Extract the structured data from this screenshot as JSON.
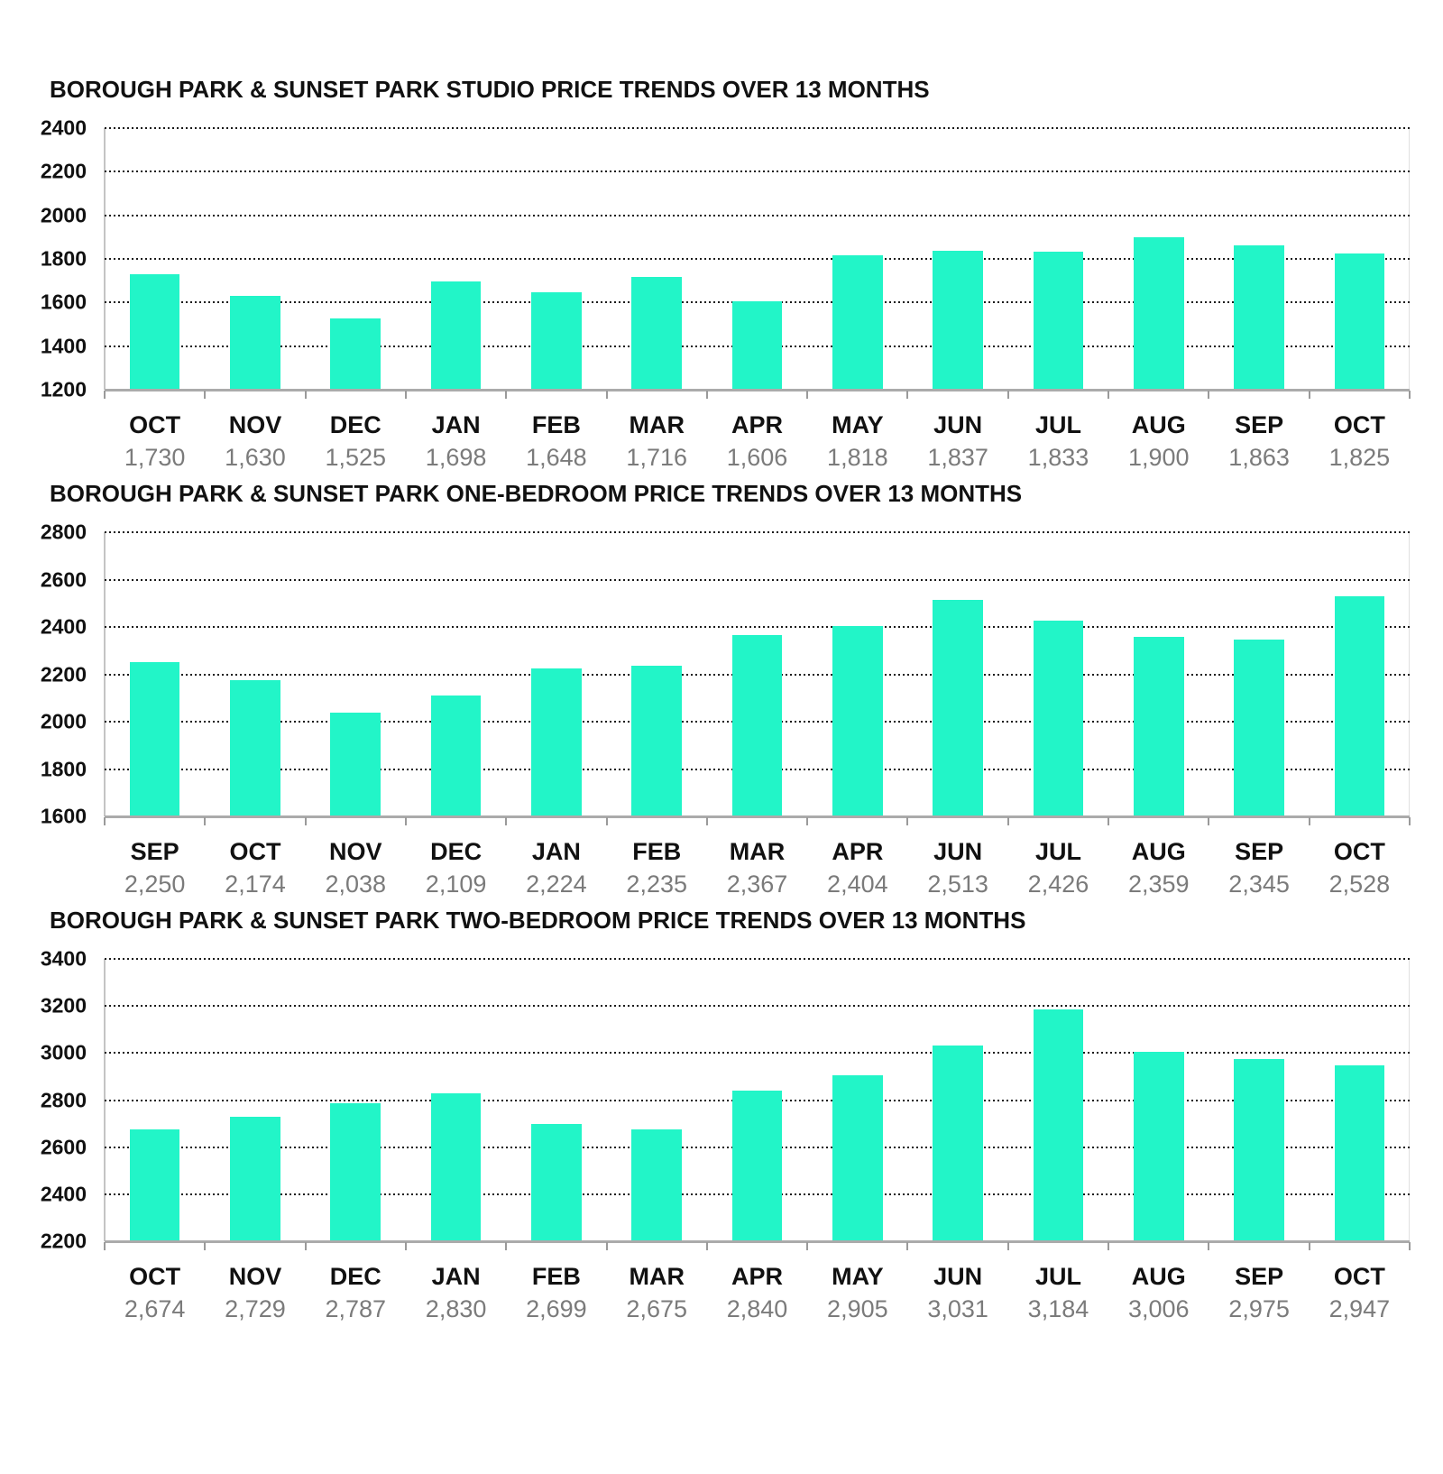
{
  "colors": {
    "bar": "#22f5c8",
    "gridline": "#1a1a1a",
    "baseline": "#ababab",
    "axis_line": "#c4c4c4",
    "x_tick": "#9a9a9a",
    "y_label": "#111111",
    "month_label": "#111111",
    "value_label": "#7b7b7b",
    "background": "#ffffff"
  },
  "chart_data": [
    {
      "type": "bar",
      "title": "BOROUGH PARK & SUNSET PARK STUDIO PRICE TRENDS OVER 13 MONTHS",
      "categories": [
        "OCT",
        "NOV",
        "DEC",
        "JAN",
        "FEB",
        "MAR",
        "APR",
        "MAY",
        "JUN",
        "JUL",
        "AUG",
        "SEP",
        "OCT"
      ],
      "values": [
        1730,
        1630,
        1525,
        1698,
        1648,
        1716,
        1606,
        1818,
        1837,
        1833,
        1900,
        1863,
        1825
      ],
      "value_labels": [
        "1,730",
        "1,630",
        "1,525",
        "1,698",
        "1,648",
        "1,716",
        "1,606",
        "1,818",
        "1,837",
        "1,833",
        "1,900",
        "1,863",
        "1,825"
      ],
      "xlabel": "",
      "ylabel": "",
      "ylim": [
        1200,
        2400
      ],
      "yticks": [
        2400,
        2200,
        2000,
        1800,
        1600,
        1400,
        1200
      ],
      "grid": "dotted-horizontal",
      "legend": "none"
    },
    {
      "type": "bar",
      "title": "BOROUGH PARK & SUNSET PARK ONE-BEDROOM PRICE TRENDS OVER 13 MONTHS",
      "categories": [
        "SEP",
        "OCT",
        "NOV",
        "DEC",
        "JAN",
        "FEB",
        "MAR",
        "APR",
        "JUN",
        "JUL",
        "AUG",
        "SEP",
        "OCT"
      ],
      "values": [
        2250,
        2174,
        2038,
        2109,
        2224,
        2235,
        2367,
        2404,
        2513,
        2426,
        2359,
        2345,
        2528
      ],
      "value_labels": [
        "2,250",
        "2,174",
        "2,038",
        "2,109",
        "2,224",
        "2,235",
        "2,367",
        "2,404",
        "2,513",
        "2,426",
        "2,359",
        "2,345",
        "2,528"
      ],
      "xlabel": "",
      "ylabel": "",
      "ylim": [
        1600,
        2800
      ],
      "yticks": [
        2800,
        2600,
        2400,
        2200,
        2000,
        1800,
        1600
      ],
      "grid": "dotted-horizontal",
      "legend": "none"
    },
    {
      "type": "bar",
      "title": "BOROUGH PARK & SUNSET PARK  TWO-BEDROOM PRICE TRENDS OVER 13 MONTHS",
      "categories": [
        "OCT",
        "NOV",
        "DEC",
        "JAN",
        "FEB",
        "MAR",
        "APR",
        "MAY",
        "JUN",
        "JUL",
        "AUG",
        "SEP",
        "OCT"
      ],
      "values": [
        2674,
        2729,
        2787,
        2830,
        2699,
        2675,
        2840,
        2905,
        3031,
        3184,
        3006,
        2975,
        2947
      ],
      "value_labels": [
        "2,674",
        "2,729",
        "2,787",
        "2,830",
        "2,699",
        "2,675",
        "2,840",
        "2,905",
        "3,031",
        "3,184",
        "3,006",
        "2,975",
        "2,947"
      ],
      "xlabel": "",
      "ylabel": "",
      "ylim": [
        2200,
        3400
      ],
      "yticks": [
        3400,
        3200,
        3000,
        2800,
        2600,
        2400,
        2200
      ],
      "grid": "dotted-horizontal",
      "legend": "none"
    }
  ]
}
